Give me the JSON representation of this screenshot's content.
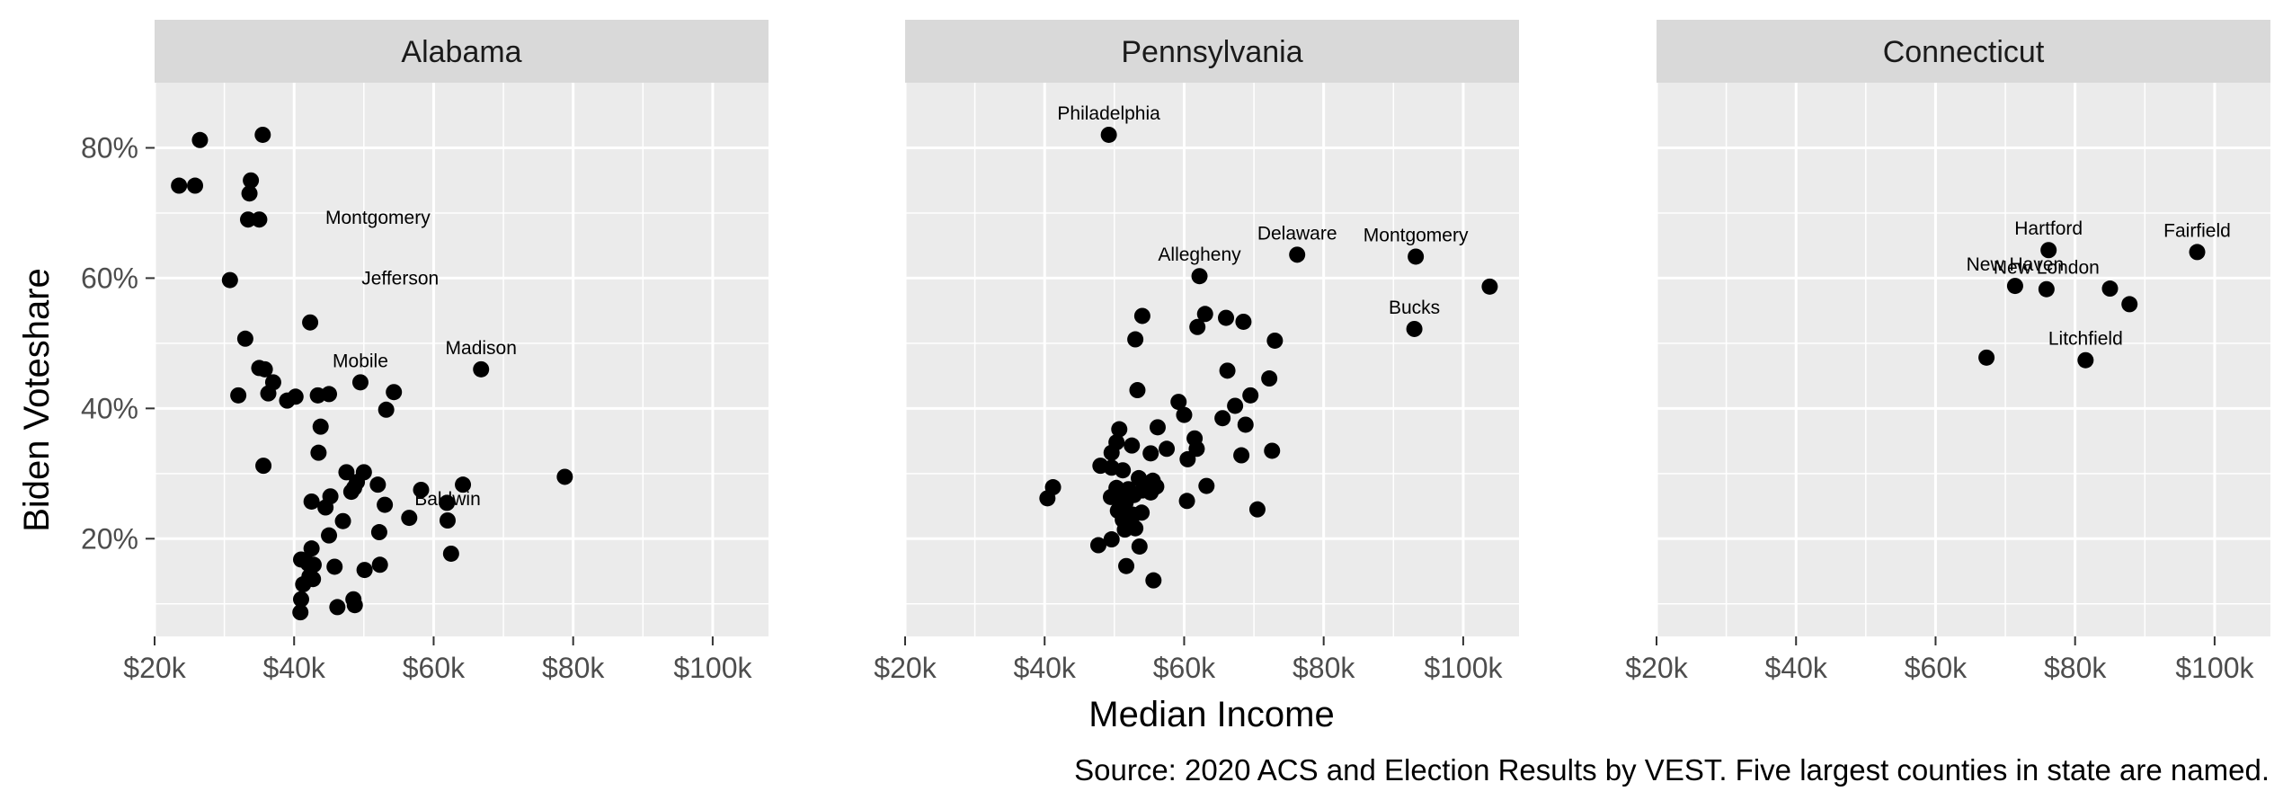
{
  "chart_data": {
    "type": "scatter",
    "xlabel": "Median Income",
    "ylabel": "Biden Voteshare",
    "caption": "Source: 2020 ACS and Election Results by VEST. Five largest counties in state are named.",
    "xlim": [
      20000,
      108000
    ],
    "ylim": [
      5,
      90
    ],
    "x_ticks": [
      20000,
      40000,
      60000,
      80000,
      100000
    ],
    "x_tick_labels": [
      "$20k",
      "$40k",
      "$60k",
      "$80k",
      "$100k"
    ],
    "y_ticks": [
      20,
      40,
      60,
      80
    ],
    "y_tick_labels": [
      "20%",
      "40%",
      "60%",
      "80%"
    ],
    "grid": true,
    "facets": [
      {
        "name": "Alabama",
        "points": [
          [
            23.5,
            74.2
          ],
          [
            25.8,
            74.2
          ],
          [
            26.5,
            81.2
          ],
          [
            35.5,
            82
          ],
          [
            33.8,
            75
          ],
          [
            33.6,
            73
          ],
          [
            33.4,
            69
          ],
          [
            35,
            69
          ],
          [
            30.8,
            59.7
          ],
          [
            33,
            50.7
          ],
          [
            42.3,
            53.2
          ],
          [
            35,
            46.2
          ],
          [
            35.8,
            46
          ],
          [
            37,
            44
          ],
          [
            36.3,
            42.3
          ],
          [
            32,
            42
          ],
          [
            39,
            41.2
          ],
          [
            40.2,
            41.8
          ],
          [
            43.4,
            42
          ],
          [
            45,
            42.2
          ],
          [
            49.5,
            44
          ],
          [
            54.3,
            42.5
          ],
          [
            53.2,
            39.8
          ],
          [
            66.8,
            46
          ],
          [
            43.8,
            37.2
          ],
          [
            43.5,
            33.2
          ],
          [
            35.6,
            31.2
          ],
          [
            47.5,
            30.2
          ],
          [
            50,
            30.2
          ],
          [
            49,
            28.7
          ],
          [
            48.6,
            27.8
          ],
          [
            48.2,
            27.2
          ],
          [
            52,
            28.3
          ],
          [
            58.2,
            27.5
          ],
          [
            64.2,
            28.3
          ],
          [
            78.8,
            29.5
          ],
          [
            42.5,
            25.7
          ],
          [
            45.2,
            26.5
          ],
          [
            44.5,
            24.8
          ],
          [
            47,
            22.7
          ],
          [
            53,
            25.2
          ],
          [
            56.5,
            23.2
          ],
          [
            62,
            22.8
          ],
          [
            61.9,
            25.5
          ],
          [
            52.2,
            21
          ],
          [
            45,
            20.5
          ],
          [
            42.5,
            18.5
          ],
          [
            41,
            16.8
          ],
          [
            42,
            16.2
          ],
          [
            42.8,
            16
          ],
          [
            45.8,
            15.7
          ],
          [
            52.3,
            16
          ],
          [
            50.1,
            15.2
          ],
          [
            41.3,
            13
          ],
          [
            42.7,
            13.8
          ],
          [
            42.2,
            14.2
          ],
          [
            62.5,
            17.7
          ],
          [
            41,
            10.7
          ],
          [
            40.9,
            8.7
          ],
          [
            46.2,
            9.5
          ],
          [
            48.5,
            10.7
          ],
          [
            48.7,
            9.8
          ]
        ],
        "labels": [
          {
            "text": "Montgomery",
            "x": 52.0,
            "y": 66.0
          },
          {
            "text": "Jefferson",
            "x": 55.2,
            "y": 56.7
          },
          {
            "text": "Mobile",
            "x": 49.5,
            "y": 44.0
          },
          {
            "text": "Madison",
            "x": 66.8,
            "y": 46.0
          },
          {
            "text": "Baldwin",
            "x": 62.0,
            "y": 22.8
          }
        ]
      },
      {
        "name": "Pennsylvania",
        "points": [
          [
            49.2,
            82
          ],
          [
            62.2,
            60.3
          ],
          [
            76.2,
            63.6
          ],
          [
            93.2,
            63.3
          ],
          [
            103.8,
            58.7
          ],
          [
            93,
            52.2
          ],
          [
            54,
            54.2
          ],
          [
            63,
            54.5
          ],
          [
            66,
            53.9
          ],
          [
            68.5,
            53.3
          ],
          [
            61.9,
            52.5
          ],
          [
            73,
            50.4
          ],
          [
            53,
            50.6
          ],
          [
            66.2,
            45.8
          ],
          [
            72.2,
            44.6
          ],
          [
            53.3,
            42.8
          ],
          [
            69.5,
            42
          ],
          [
            59.2,
            41
          ],
          [
            67.3,
            40.4
          ],
          [
            60,
            39
          ],
          [
            65.5,
            38.5
          ],
          [
            68.8,
            37.5
          ],
          [
            56.2,
            37.1
          ],
          [
            50.7,
            36.8
          ],
          [
            61.5,
            35.4
          ],
          [
            50.3,
            34.8
          ],
          [
            52.5,
            34.3
          ],
          [
            57.5,
            33.8
          ],
          [
            61.8,
            33.8
          ],
          [
            72.6,
            33.5
          ],
          [
            49.6,
            33.2
          ],
          [
            55.2,
            33.1
          ],
          [
            68.2,
            32.8
          ],
          [
            60.5,
            32.2
          ],
          [
            48,
            31.2
          ],
          [
            49.6,
            30.9
          ],
          [
            51.2,
            30.5
          ],
          [
            53.5,
            29.3
          ],
          [
            55.5,
            28.9
          ],
          [
            56,
            28
          ],
          [
            63.2,
            28.1
          ],
          [
            41.2,
            27.9
          ],
          [
            50.3,
            27.8
          ],
          [
            52,
            27.6
          ],
          [
            54,
            27.4
          ],
          [
            55.2,
            27.1
          ],
          [
            52.8,
            26.7
          ],
          [
            49.5,
            26.4
          ],
          [
            51,
            26.3
          ],
          [
            40.4,
            26.2
          ],
          [
            51.6,
            25.5
          ],
          [
            60.4,
            25.8
          ],
          [
            70.5,
            24.5
          ],
          [
            50.5,
            24.3
          ],
          [
            52.6,
            23.7
          ],
          [
            53.9,
            24
          ],
          [
            51.2,
            22.9
          ],
          [
            52.4,
            22.7
          ],
          [
            51.5,
            21.4
          ],
          [
            53,
            21.6
          ],
          [
            49.6,
            19.9
          ],
          [
            47.7,
            19
          ],
          [
            53.6,
            18.8
          ],
          [
            51.7,
            15.8
          ],
          [
            55.6,
            13.6
          ]
        ],
        "labels": [
          {
            "text": "Philadelphia",
            "x": 49.2,
            "y": 82.0
          },
          {
            "text": "Allegheny",
            "x": 62.2,
            "y": 60.3
          },
          {
            "text": "Delaware",
            "x": 76.2,
            "y": 63.6
          },
          {
            "text": "Montgomery",
            "x": 93.2,
            "y": 63.3
          },
          {
            "text": "Bucks",
            "x": 93.0,
            "y": 52.2
          }
        ]
      },
      {
        "name": "Connecticut",
        "points": [
          [
            76.2,
            64.3
          ],
          [
            97.5,
            64
          ],
          [
            71.4,
            58.8
          ],
          [
            75.9,
            58.3
          ],
          [
            85,
            58.4
          ],
          [
            87.8,
            56
          ],
          [
            67.3,
            47.8
          ],
          [
            81.5,
            47.4
          ]
        ],
        "labels": [
          {
            "text": "Hartford",
            "x": 76.2,
            "y": 64.3
          },
          {
            "text": "Fairfield",
            "x": 97.5,
            "y": 64.0
          },
          {
            "text": "New Haven",
            "x": 71.4,
            "y": 58.8
          },
          {
            "text": "New London",
            "x": 75.9,
            "y": 58.3
          },
          {
            "text": "Litchfield",
            "x": 81.5,
            "y": 47.4
          }
        ]
      }
    ]
  }
}
